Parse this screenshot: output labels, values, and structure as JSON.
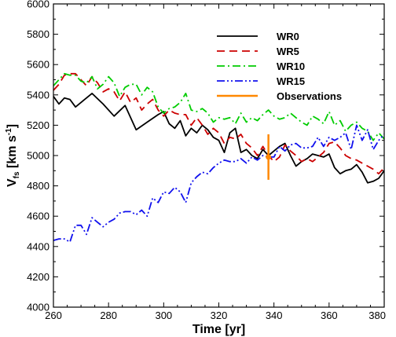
{
  "chart_data": {
    "type": "line",
    "xlabel": "Time [yr]",
    "ylabel": {
      "main": "V",
      "sub": "fs",
      "units_open": " [km s",
      "sup": "-1",
      "units_close": "]"
    },
    "xlim": [
      260,
      380
    ],
    "ylim": [
      4000,
      6000
    ],
    "xticks": [
      260,
      280,
      300,
      320,
      340,
      360,
      380
    ],
    "yticks": [
      4000,
      4200,
      4400,
      4600,
      4800,
      5000,
      5200,
      5400,
      5600,
      5800,
      6000
    ],
    "grid": false,
    "legend_position": "top-right",
    "series": [
      {
        "name": "WR0",
        "color": "#000000",
        "dash": "solid",
        "x": [
          260,
          262,
          264,
          266,
          268,
          270,
          274,
          278,
          282,
          286,
          290,
          294,
          298,
          300,
          302,
          304,
          306,
          308,
          310,
          312,
          314,
          316,
          318,
          320,
          322,
          324,
          326,
          328,
          330,
          332,
          334,
          336,
          338,
          340,
          342,
          344,
          346,
          348,
          350,
          352,
          354,
          356,
          358,
          360,
          362,
          364,
          366,
          368,
          370,
          372,
          374,
          376,
          378,
          380
        ],
        "y": [
          5390,
          5340,
          5380,
          5370,
          5320,
          5350,
          5410,
          5340,
          5260,
          5330,
          5170,
          5220,
          5270,
          5290,
          5210,
          5180,
          5230,
          5130,
          5180,
          5150,
          5200,
          5170,
          5120,
          5100,
          5020,
          5150,
          5180,
          5020,
          5040,
          5000,
          4980,
          5040,
          5000,
          5030,
          5060,
          5080,
          5000,
          4930,
          4960,
          4980,
          5010,
          5000,
          4990,
          5010,
          4920,
          4880,
          4900,
          4910,
          4940,
          4890,
          4820,
          4830,
          4850,
          4900
        ]
      },
      {
        "name": "WR5",
        "color": "#cc0000",
        "dash": "10,6",
        "x": [
          260,
          262,
          264,
          266,
          268,
          270,
          272,
          274,
          276,
          278,
          280,
          282,
          284,
          286,
          288,
          290,
          292,
          294,
          296,
          298,
          300,
          302,
          304,
          306,
          308,
          310,
          312,
          314,
          316,
          318,
          320,
          322,
          324,
          326,
          328,
          330,
          332,
          334,
          336,
          338,
          340,
          342,
          344,
          346,
          348,
          350,
          352,
          354,
          356,
          358,
          360,
          362,
          364,
          366,
          368,
          370,
          372,
          374,
          376,
          378,
          380
        ],
        "y": [
          5430,
          5470,
          5530,
          5540,
          5540,
          5500,
          5460,
          5520,
          5480,
          5420,
          5440,
          5420,
          5360,
          5420,
          5350,
          5380,
          5300,
          5340,
          5370,
          5300,
          5260,
          5300,
          5280,
          5270,
          5270,
          5200,
          5250,
          5200,
          5140,
          5180,
          5150,
          5080,
          5120,
          5110,
          5140,
          5080,
          5050,
          5000,
          5060,
          5000,
          4960,
          4990,
          5070,
          5030,
          5000,
          4960,
          4980,
          4960,
          4990,
          5020,
          5080,
          5090,
          5050,
          5000,
          4980,
          4970,
          4950,
          4930,
          4910,
          4880,
          4920
        ]
      },
      {
        "name": "WR10",
        "color": "#00cc00",
        "dash": "10,4,2,4",
        "x": [
          260,
          262,
          264,
          266,
          268,
          270,
          272,
          274,
          276,
          278,
          280,
          282,
          284,
          286,
          288,
          290,
          292,
          294,
          296,
          298,
          300,
          302,
          304,
          306,
          308,
          310,
          312,
          314,
          316,
          318,
          320,
          322,
          324,
          326,
          328,
          330,
          332,
          334,
          336,
          338,
          340,
          342,
          344,
          346,
          348,
          350,
          352,
          354,
          356,
          358,
          360,
          362,
          364,
          366,
          368,
          370,
          372,
          374,
          376,
          378,
          380
        ],
        "y": [
          5460,
          5500,
          5540,
          5530,
          5530,
          5490,
          5480,
          5520,
          5440,
          5470,
          5520,
          5480,
          5390,
          5450,
          5470,
          5470,
          5400,
          5450,
          5420,
          5320,
          5280,
          5310,
          5320,
          5350,
          5410,
          5300,
          5290,
          5310,
          5280,
          5220,
          5250,
          5240,
          5250,
          5210,
          5280,
          5220,
          5250,
          5230,
          5270,
          5300,
          5260,
          5240,
          5250,
          5280,
          5250,
          5220,
          5200,
          5260,
          5240,
          5210,
          5290,
          5200,
          5230,
          5160,
          5200,
          5220,
          5180,
          5160,
          5100,
          5150,
          5110
        ]
      },
      {
        "name": "WR15",
        "color": "#1010ee",
        "dash": "10,3,2,3,2,3",
        "x": [
          260,
          262,
          264,
          266,
          268,
          270,
          272,
          274,
          276,
          278,
          280,
          282,
          284,
          286,
          288,
          290,
          292,
          294,
          296,
          298,
          300,
          302,
          304,
          306,
          308,
          310,
          312,
          314,
          316,
          318,
          320,
          322,
          324,
          326,
          328,
          330,
          332,
          334,
          336,
          338,
          340,
          342,
          344,
          346,
          348,
          350,
          352,
          354,
          356,
          358,
          360,
          362,
          364,
          366,
          368,
          370,
          372,
          374,
          376,
          378,
          380
        ],
        "y": [
          4440,
          4450,
          4450,
          4430,
          4540,
          4540,
          4480,
          4590,
          4560,
          4530,
          4560,
          4580,
          4620,
          4630,
          4630,
          4610,
          4640,
          4600,
          4720,
          4690,
          4760,
          4750,
          4790,
          4760,
          4690,
          4820,
          4860,
          4890,
          4880,
          4920,
          4950,
          4970,
          4960,
          4960,
          4980,
          4950,
          4990,
          4970,
          5000,
          4990,
          4990,
          5060,
          5030,
          5070,
          5080,
          5050,
          5050,
          5060,
          5120,
          5060,
          5120,
          5100,
          5120,
          5150,
          5040,
          5200,
          5100,
          5170,
          5040,
          5100,
          5140
        ]
      }
    ],
    "observation": {
      "name": "Observations",
      "color": "#ff8800",
      "x": 338,
      "y": 4990,
      "y_low": 4840,
      "y_high": 5140
    }
  }
}
